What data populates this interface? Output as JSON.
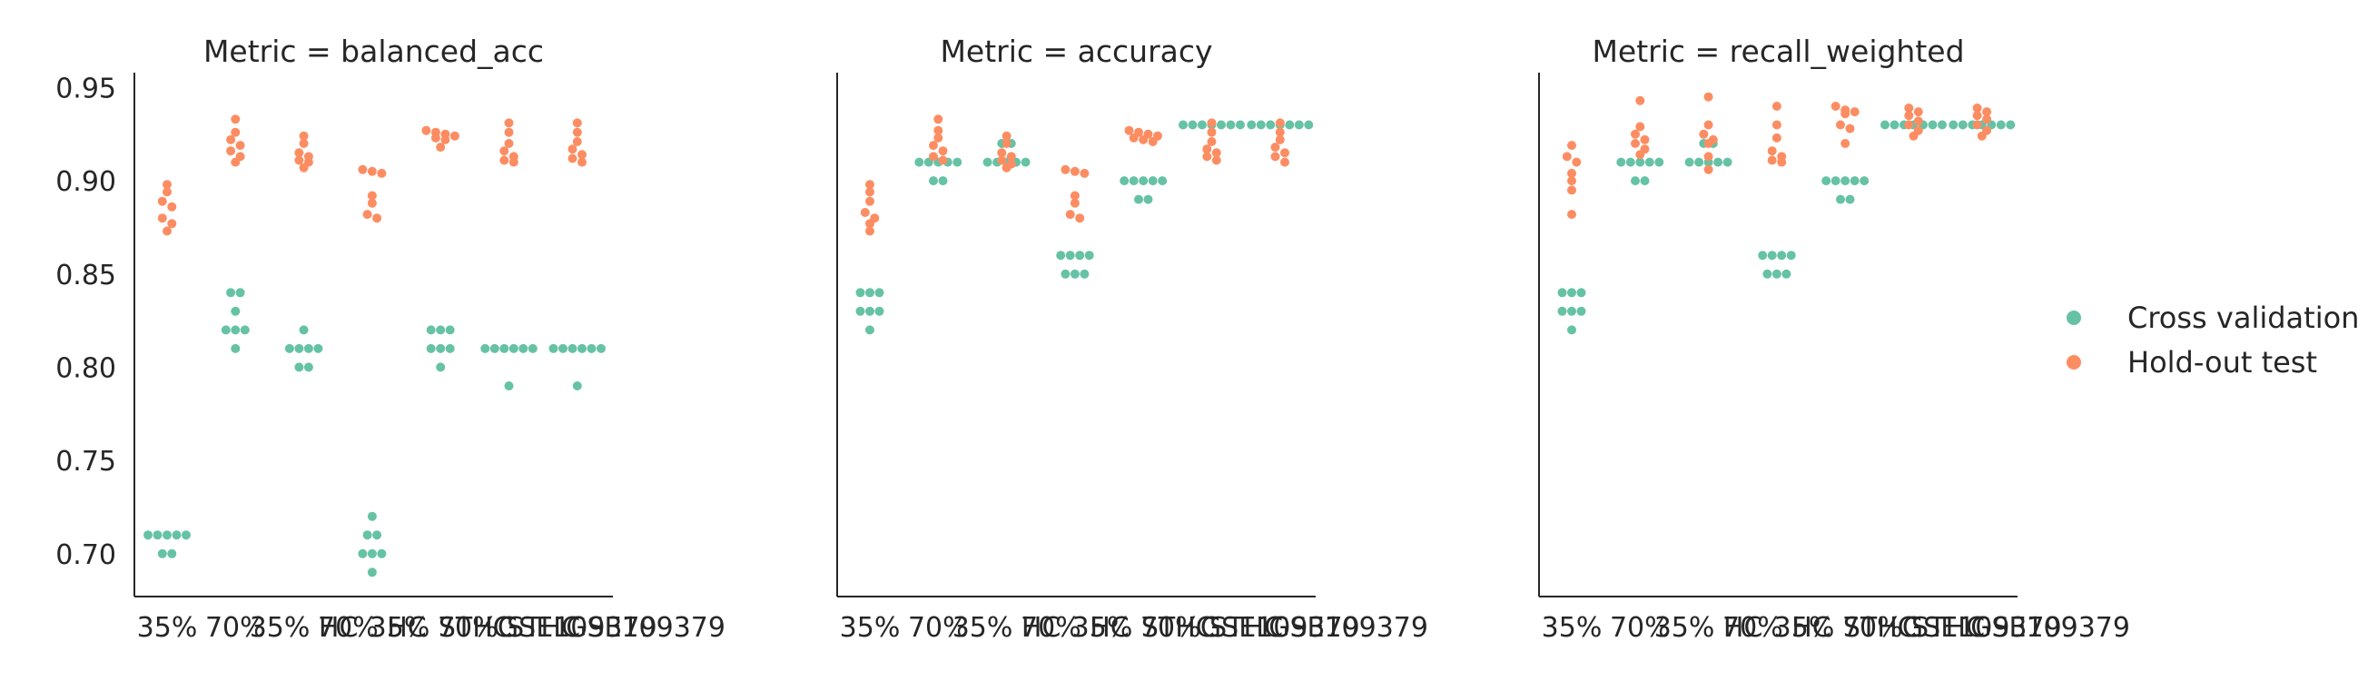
{
  "chart_data": {
    "type": "scatter",
    "style": "swarm (beeswarm) strip plot, faceted by Metric",
    "y_ticks": [
      "0.70",
      "0.75",
      "0.80",
      "0.85",
      "0.90",
      "0.95"
    ],
    "y_tick_values": [
      0.7,
      0.75,
      0.8,
      0.85,
      0.9,
      0.95
    ],
    "ylim": [
      0.677,
      0.958
    ],
    "shared_y": true,
    "x_tick_labels": [
      "35%",
      "70%",
      "35% HC",
      "70% HC",
      "35% STHC",
      "70% STHC",
      "GSE109379",
      "GSE109379"
    ],
    "legend": {
      "placement": "right",
      "entries": [
        {
          "name": "Cross validation",
          "color": "#66c2a5"
        },
        {
          "name": "Hold-out test",
          "color": "#fc8d62"
        }
      ]
    },
    "panels": [
      {
        "title": "Metric = balanced_acc",
        "cross_validation": [
          [
            0.71,
            0.71,
            0.71,
            0.71,
            0.71,
            0.7,
            0.7
          ],
          [
            0.84,
            0.84,
            0.83,
            0.82,
            0.82,
            0.82,
            0.81
          ],
          [
            0.82,
            0.81,
            0.81,
            0.81,
            0.81,
            0.8,
            0.8
          ],
          [
            0.72,
            0.71,
            0.71,
            0.7,
            0.7,
            0.7,
            0.69
          ],
          [
            0.82,
            0.82,
            0.82,
            0.81,
            0.81,
            0.81,
            0.8
          ],
          [
            0.81,
            0.81,
            0.81,
            0.81,
            0.81,
            0.81,
            0.79
          ],
          [
            0.81,
            0.81,
            0.81,
            0.81,
            0.81,
            0.81,
            0.79
          ]
        ],
        "hold_out_test": [
          [
            0.898,
            0.894,
            0.889,
            0.886,
            0.88,
            0.877,
            0.873
          ],
          [
            0.933,
            0.926,
            0.922,
            0.919,
            0.916,
            0.913,
            0.91
          ],
          [
            0.924,
            0.92,
            0.915,
            0.913,
            0.911,
            0.91,
            0.907
          ],
          [
            0.906,
            0.905,
            0.904,
            0.892,
            0.888,
            0.882,
            0.88
          ],
          [
            0.927,
            0.926,
            0.925,
            0.924,
            0.923,
            0.922,
            0.918
          ],
          [
            0.931,
            0.926,
            0.92,
            0.916,
            0.913,
            0.911,
            0.91
          ],
          [
            0.931,
            0.926,
            0.921,
            0.917,
            0.914,
            0.912,
            0.91
          ]
        ]
      },
      {
        "title": "Metric = accuracy",
        "cross_validation": [
          [
            0.84,
            0.84,
            0.84,
            0.83,
            0.83,
            0.83,
            0.82
          ],
          [
            0.91,
            0.91,
            0.91,
            0.91,
            0.91,
            0.9,
            0.9
          ],
          [
            0.92,
            0.92,
            0.91,
            0.91,
            0.91,
            0.91,
            0.91
          ],
          [
            0.86,
            0.86,
            0.86,
            0.86,
            0.85,
            0.85,
            0.85
          ],
          [
            0.9,
            0.9,
            0.9,
            0.9,
            0.9,
            0.89,
            0.89
          ],
          [
            0.93,
            0.93,
            0.93,
            0.93,
            0.93,
            0.93,
            0.93
          ],
          [
            0.93,
            0.93,
            0.93,
            0.93,
            0.93,
            0.93,
            0.93
          ]
        ],
        "hold_out_test": [
          [
            0.898,
            0.894,
            0.889,
            0.883,
            0.88,
            0.877,
            0.873
          ],
          [
            0.933,
            0.927,
            0.923,
            0.919,
            0.916,
            0.913,
            0.911
          ],
          [
            0.924,
            0.92,
            0.915,
            0.913,
            0.911,
            0.909,
            0.907
          ],
          [
            0.906,
            0.905,
            0.904,
            0.892,
            0.888,
            0.882,
            0.88
          ],
          [
            0.927,
            0.926,
            0.925,
            0.924,
            0.923,
            0.922,
            0.921
          ],
          [
            0.931,
            0.926,
            0.921,
            0.917,
            0.915,
            0.913,
            0.911
          ],
          [
            0.931,
            0.926,
            0.922,
            0.918,
            0.915,
            0.913,
            0.91
          ]
        ]
      },
      {
        "title": "Metric = recall_weighted",
        "cross_validation": [
          [
            0.84,
            0.84,
            0.84,
            0.83,
            0.83,
            0.83,
            0.82
          ],
          [
            0.91,
            0.91,
            0.91,
            0.91,
            0.91,
            0.9,
            0.9
          ],
          [
            0.92,
            0.92,
            0.91,
            0.91,
            0.91,
            0.91,
            0.91
          ],
          [
            0.86,
            0.86,
            0.86,
            0.86,
            0.85,
            0.85,
            0.85
          ],
          [
            0.9,
            0.9,
            0.9,
            0.9,
            0.9,
            0.89,
            0.89
          ],
          [
            0.93,
            0.93,
            0.93,
            0.93,
            0.93,
            0.93,
            0.93
          ],
          [
            0.93,
            0.93,
            0.93,
            0.93,
            0.93,
            0.93,
            0.93
          ]
        ],
        "hold_out_test": [
          [
            0.919,
            0.913,
            0.91,
            0.904,
            0.9,
            0.895,
            0.882
          ],
          [
            0.943,
            0.929,
            0.925,
            0.922,
            0.92,
            0.917,
            0.914
          ],
          [
            0.945,
            0.93,
            0.925,
            0.922,
            0.92,
            0.913,
            0.906
          ],
          [
            0.94,
            0.93,
            0.923,
            0.916,
            0.913,
            0.911,
            0.91
          ],
          [
            0.94,
            0.938,
            0.937,
            0.936,
            0.93,
            0.928,
            0.92
          ],
          [
            0.939,
            0.937,
            0.935,
            0.932,
            0.93,
            0.927,
            0.924
          ],
          [
            0.939,
            0.937,
            0.935,
            0.933,
            0.93,
            0.927,
            0.924
          ]
        ]
      }
    ]
  }
}
